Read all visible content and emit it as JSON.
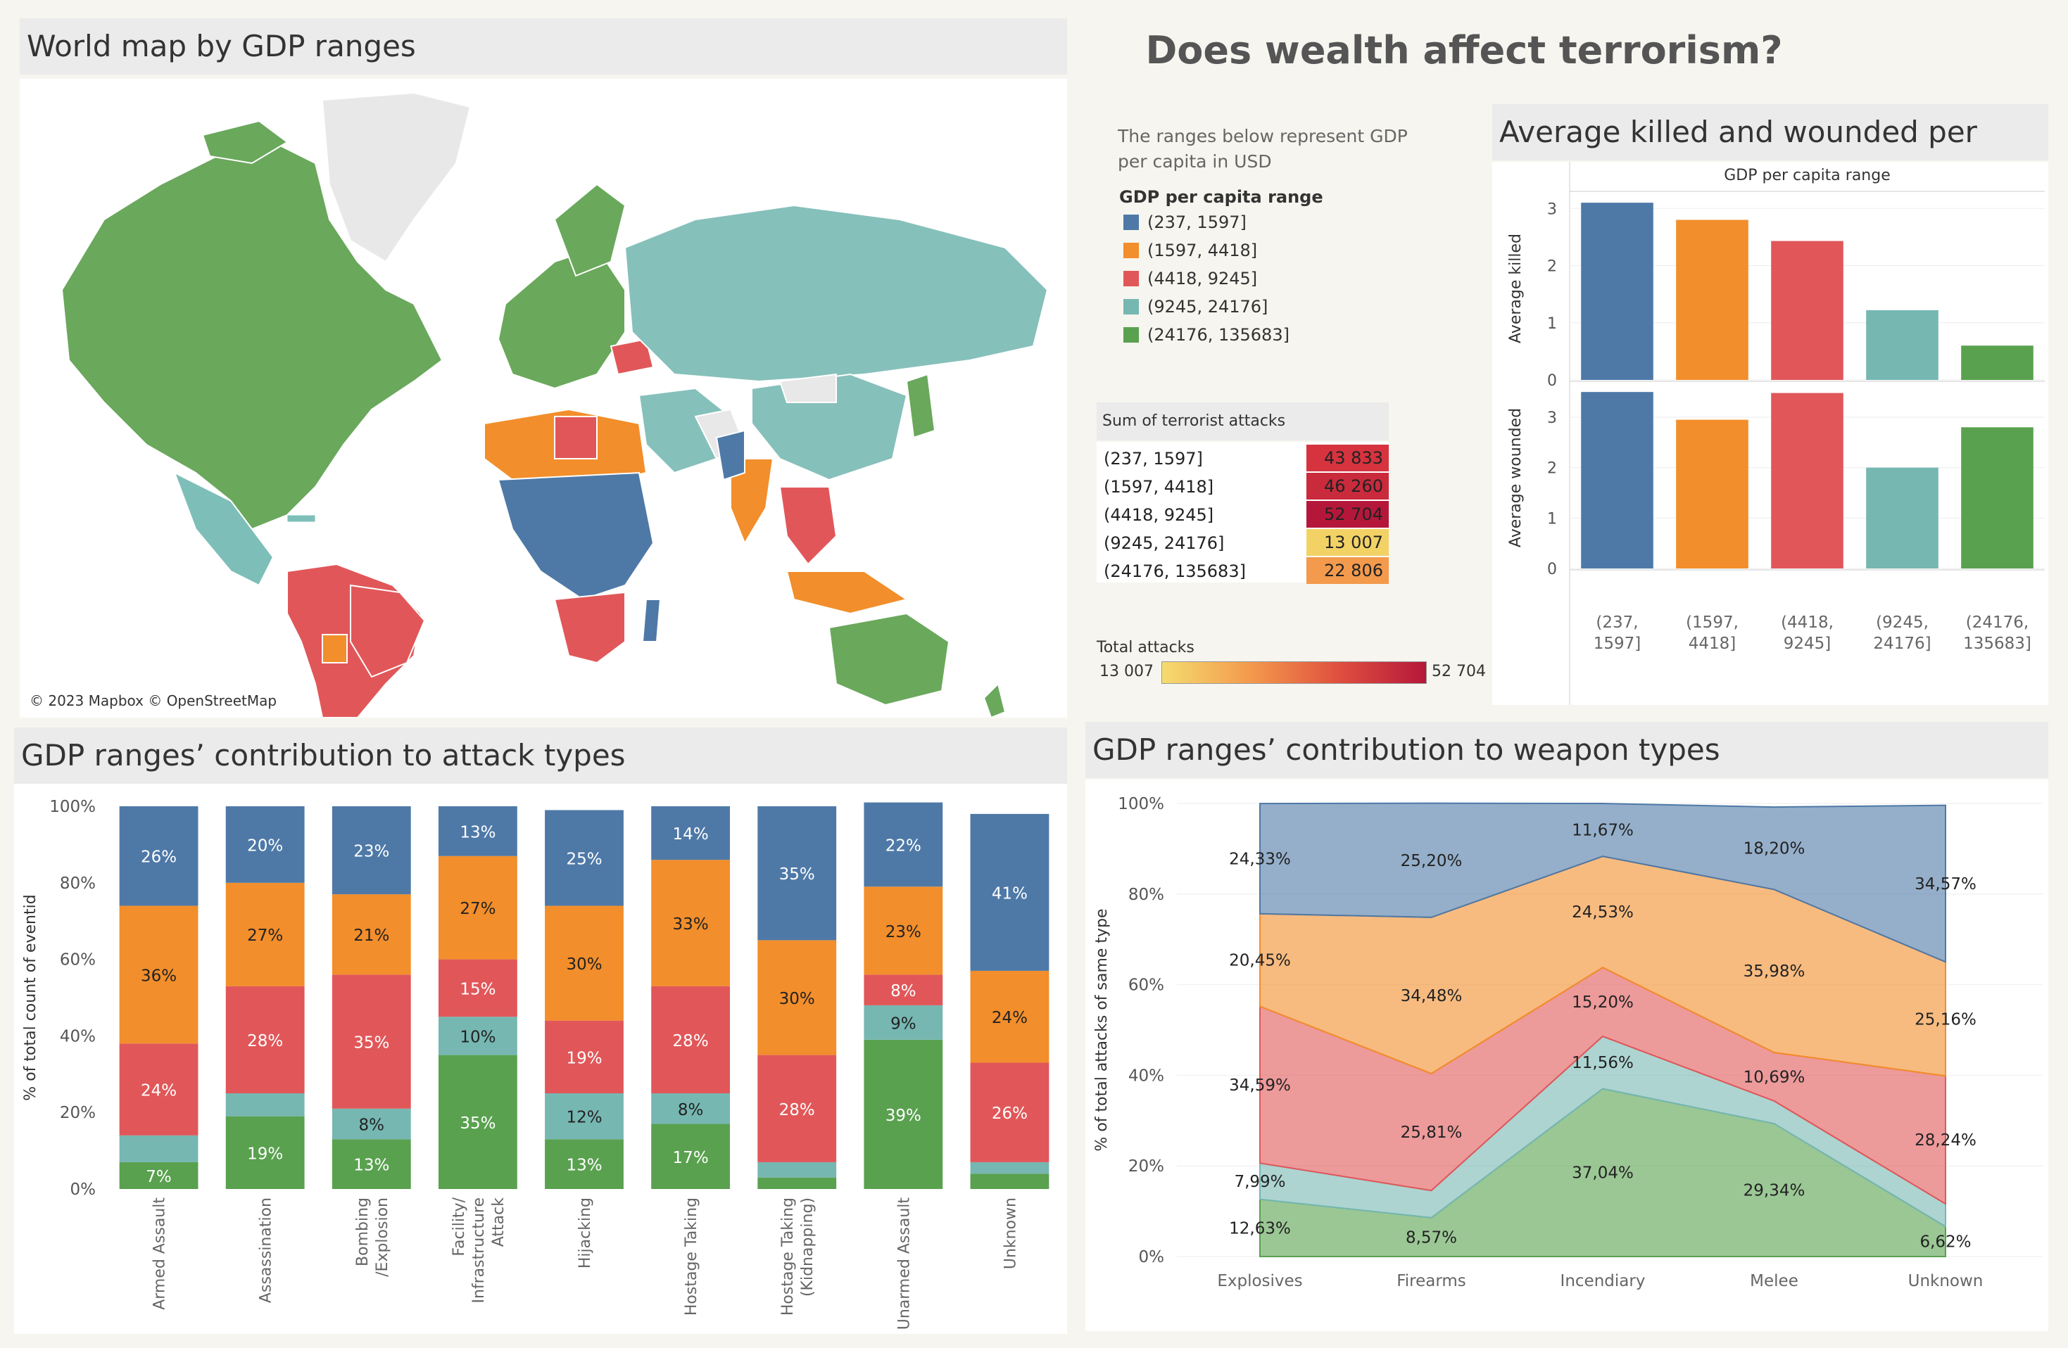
{
  "dashboard": {
    "title": "Does wealth affect terrorism?",
    "intro_text": "The ranges below represent GDP per capita in USD"
  },
  "map_panel": {
    "title": "World map by GDP ranges",
    "attribution": "© 2023 Mapbox © OpenStreetMap"
  },
  "legend": {
    "title": "GDP per capita range",
    "items": [
      {
        "label": "(237, 1597]",
        "color": "#4e79a7"
      },
      {
        "label": "(1597, 4418]",
        "color": "#f28e2b"
      },
      {
        "label": "(4418, 9245]",
        "color": "#e15759"
      },
      {
        "label": "(9245, 24176]",
        "color": "#76b7b2"
      },
      {
        "label": "(24176, 135683]",
        "color": "#59a14f"
      }
    ]
  },
  "attacks_table": {
    "header": "Sum of terrorist attacks",
    "rows": [
      {
        "label": "(237, 1597]",
        "value": "43 833",
        "color": "#d6333f"
      },
      {
        "label": "(1597, 4418]",
        "value": "46 260",
        "color": "#c92a3c"
      },
      {
        "label": "(4418, 9245]",
        "value": "52 704",
        "color": "#b5173a"
      },
      {
        "label": "(9245, 24176]",
        "value": "13 007",
        "color": "#f3d265"
      },
      {
        "label": "(24176, 135683]",
        "value": "22 806",
        "color": "#f39a4c"
      }
    ],
    "color_legend": {
      "title": "Total attacks",
      "min": "13 007",
      "max": "52 704",
      "min_color": "#f5dc6f",
      "max_color": "#b5173a"
    }
  },
  "killed_wounded": {
    "title": "Average killed and wounded per attack",
    "column_header": "GDP per capita range",
    "categories": [
      "(237, 1597]",
      "(1597, 4418]",
      "(4418, 9245]",
      "(9245, 24176]",
      "(24176, 135683]"
    ],
    "category_lines": [
      [
        "(237,",
        "1597]"
      ],
      [
        "(1597,",
        "4418]"
      ],
      [
        "(4418,",
        "9245]"
      ],
      [
        "(9245,",
        "24176]"
      ],
      [
        "(24176,",
        "135683]"
      ]
    ],
    "killed_label": "Average killed",
    "wounded_label": "Average wounded",
    "ticks_killed": [
      "0",
      "1",
      "2",
      "3"
    ],
    "ticks_wounded": [
      "0",
      "1",
      "2",
      "3"
    ]
  },
  "attack_types": {
    "title": "GDP ranges’ contribution to attack types",
    "ylabel": "% of total count of eventid",
    "yticks": [
      "0%",
      "20%",
      "40%",
      "60%",
      "80%",
      "100%"
    ]
  },
  "weapon_types": {
    "title": "GDP ranges’ contribution to weapon types",
    "ylabel": "% of total attacks of same type",
    "yticks": [
      "0%",
      "20%",
      "40%",
      "60%",
      "80%",
      "100%"
    ]
  },
  "chart_data": [
    {
      "type": "bar",
      "title": "Average killed and wounded per attack",
      "categories": [
        "(237, 1597]",
        "(1597, 4418]",
        "(4418, 9245]",
        "(9245, 24176]",
        "(24176, 135683]"
      ],
      "series": [
        {
          "name": "Average killed",
          "values": [
            3.1,
            2.8,
            2.43,
            1.22,
            0.6
          ]
        },
        {
          "name": "Average wounded",
          "values": [
            3.5,
            2.95,
            3.48,
            2.0,
            2.8
          ]
        }
      ],
      "ylim_killed": [
        0,
        3.2
      ],
      "ylim_wounded": [
        0,
        3.6
      ],
      "colors": [
        "#4e79a7",
        "#f28e2b",
        "#e15759",
        "#76b7b2",
        "#59a14f"
      ]
    },
    {
      "type": "bar",
      "title": "GDP ranges’ contribution to attack types",
      "stacked": true,
      "ylabel": "% of total count of eventid",
      "ylim": [
        0,
        100
      ],
      "categories": [
        "Armed Assault",
        "Assassination",
        "Bombing /Explosion",
        "Facility/ Infrastructure Attack",
        "Hijacking",
        "Hostage Taking",
        "Hostage Taking (Kidnapping)",
        "Unarmed Assault",
        "Unknown"
      ],
      "category_lines": [
        [
          "Armed Assault"
        ],
        [
          "Assassination"
        ],
        [
          "Bombing",
          "/Explosion"
        ],
        [
          "Facility/",
          "Infrastructure",
          "Attack"
        ],
        [
          "Hijacking"
        ],
        [
          "Hostage Taking"
        ],
        [
          "Hostage Taking",
          "(Kidnapping)"
        ],
        [
          "Unarmed Assault"
        ],
        [
          "Unknown"
        ]
      ],
      "series": [
        {
          "name": "(24176, 135683]",
          "color": "#59a14f",
          "values": [
            7,
            19,
            13,
            35,
            13,
            17,
            3,
            39,
            4
          ],
          "labels": [
            "7%",
            "19%",
            "13%",
            "35%",
            "13%",
            "17%",
            "",
            "39%",
            ""
          ]
        },
        {
          "name": "(9245, 24176]",
          "color": "#76b7b2",
          "values": [
            7,
            6,
            8,
            10,
            12,
            8,
            4,
            9,
            3
          ],
          "labels": [
            "",
            "",
            "8%",
            "10%",
            "12%",
            "8%",
            "",
            "9%",
            ""
          ]
        },
        {
          "name": "(4418, 9245]",
          "color": "#e15759",
          "values": [
            24,
            28,
            35,
            15,
            19,
            28,
            28,
            8,
            26
          ],
          "labels": [
            "24%",
            "28%",
            "35%",
            "15%",
            "19%",
            "28%",
            "28%",
            "8%",
            "26%"
          ]
        },
        {
          "name": "(1597, 4418]",
          "color": "#f28e2b",
          "values": [
            36,
            27,
            21,
            27,
            30,
            33,
            30,
            23,
            24
          ],
          "labels": [
            "36%",
            "27%",
            "21%",
            "27%",
            "30%",
            "33%",
            "30%",
            "23%",
            "24%"
          ]
        },
        {
          "name": "(237, 1597]",
          "color": "#4e79a7",
          "values": [
            26,
            20,
            23,
            13,
            25,
            14,
            35,
            22,
            41
          ],
          "labels": [
            "26%",
            "20%",
            "23%",
            "13%",
            "25%",
            "14%",
            "35%",
            "22%",
            "41%"
          ]
        }
      ]
    },
    {
      "type": "area",
      "title": "GDP ranges’ contribution to weapon types",
      "stacked": true,
      "ylabel": "% of total attacks of same type",
      "ylim": [
        0,
        100
      ],
      "categories": [
        "Explosives",
        "Firearms",
        "Incendiary",
        "Melee",
        "Unknown"
      ],
      "series": [
        {
          "name": "(24176, 135683]",
          "color": "#59a14f",
          "values": [
            12.63,
            8.57,
            37.04,
            29.34,
            6.62
          ],
          "labels": [
            "12,63%",
            "8,57%",
            "37,04%",
            "29,34%",
            "6,62%"
          ]
        },
        {
          "name": "(9245, 24176]",
          "color": "#76b7b2",
          "values": [
            7.99,
            6.0,
            11.56,
            5.0,
            5.0
          ],
          "labels": [
            "7,99%",
            "",
            "11,56%",
            "",
            ""
          ]
        },
        {
          "name": "(4418, 9245]",
          "color": "#e15759",
          "values": [
            34.59,
            25.81,
            15.2,
            10.69,
            28.24
          ],
          "labels": [
            "34,59%",
            "25,81%",
            "15,20%",
            "10,69%",
            "28,24%"
          ]
        },
        {
          "name": "(1597, 4418]",
          "color": "#f28e2b",
          "values": [
            20.45,
            34.48,
            24.53,
            35.98,
            25.16
          ],
          "labels": [
            "20,45%",
            "34,48%",
            "24,53%",
            "35,98%",
            "25,16%"
          ]
        },
        {
          "name": "(237, 1597]",
          "color": "#4e79a7",
          "values": [
            24.33,
            25.2,
            11.67,
            18.2,
            34.57
          ],
          "labels": [
            "24,33%",
            "25,20%",
            "11,67%",
            "18,20%",
            "34,57%"
          ]
        }
      ]
    }
  ]
}
